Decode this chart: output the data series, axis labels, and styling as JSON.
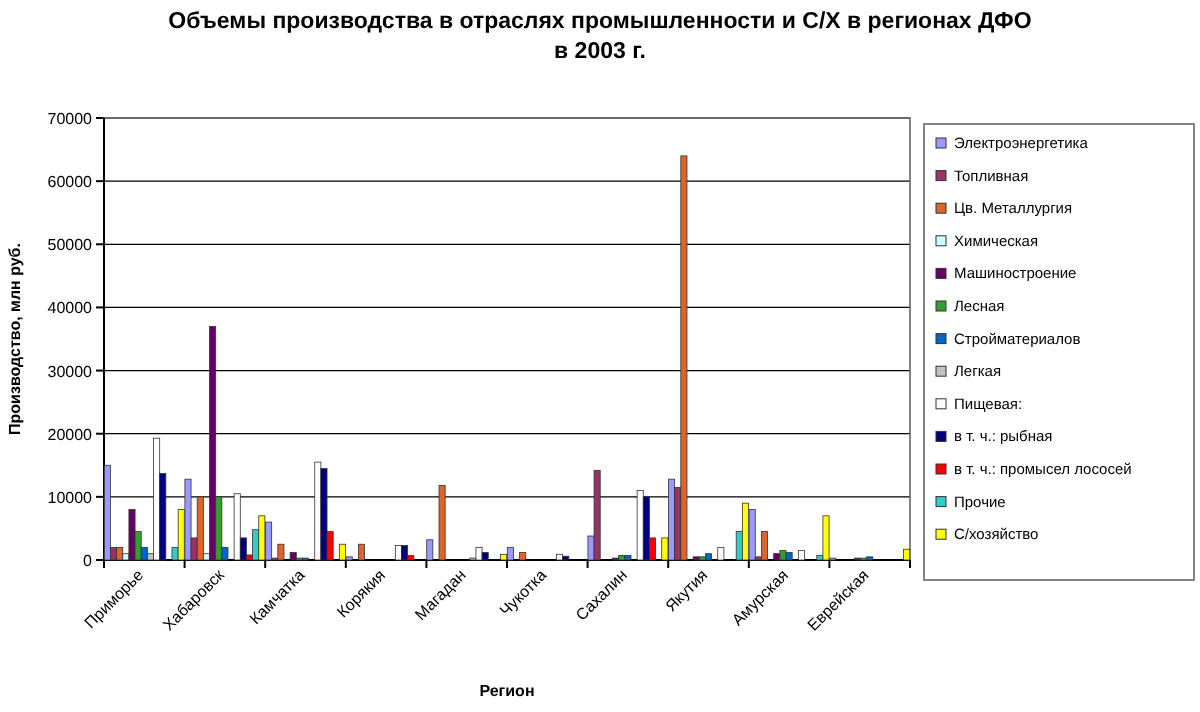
{
  "chart_data": {
    "type": "bar",
    "title": "Объемы производства в отраслях промышленности и С/Х в регионах ДФО\nв 2003 г.",
    "xlabel": "Регион",
    "ylabel": "Производство, млн  руб.",
    "categories": [
      "Приморье",
      "Хабаровск",
      "Камчатка",
      "Корякия",
      "Магадан",
      "Чукотка",
      "Сахалин",
      "Якутия",
      "Амурская",
      "Еврейская"
    ],
    "series": [
      {
        "name": "Электроэнергетика",
        "color": "#9999ff",
        "values": [
          15000,
          12800,
          6000,
          500,
          3200,
          2000,
          3800,
          12800,
          8000,
          300
        ]
      },
      {
        "name": "Топливная",
        "color": "#993366",
        "values": [
          2000,
          3500,
          300,
          0,
          0,
          0,
          14200,
          11500,
          500,
          0
        ]
      },
      {
        "name": "Цв. Металлургия",
        "color": "#e0642a",
        "values": [
          2000,
          10000,
          2500,
          2500,
          11800,
          1200,
          0,
          64000,
          4500,
          0
        ]
      },
      {
        "name": "Химическая",
        "color": "#ccffff",
        "values": [
          1000,
          1000,
          0,
          0,
          0,
          0,
          0,
          0,
          0,
          0
        ]
      },
      {
        "name": "Машиностроение",
        "color": "#660066",
        "values": [
          8000,
          37000,
          1200,
          0,
          0,
          0,
          300,
          500,
          1000,
          300
        ]
      },
      {
        "name": "Лесная",
        "color": "#33a02c",
        "values": [
          4500,
          10000,
          300,
          0,
          0,
          0,
          700,
          500,
          1500,
          300
        ]
      },
      {
        "name": "Стройматериалов",
        "color": "#0066cc",
        "values": [
          2000,
          2000,
          300,
          0,
          0,
          0,
          700,
          1000,
          1200,
          500
        ]
      },
      {
        "name": "Легкая",
        "color": "#c0c0c0",
        "values": [
          1000,
          0,
          0,
          0,
          300,
          0,
          0,
          0,
          0,
          0
        ]
      },
      {
        "name": "Пищевая:",
        "color": "#ffffff",
        "values": [
          19300,
          10500,
          15500,
          2300,
          2000,
          900,
          11000,
          2000,
          1500,
          0
        ]
      },
      {
        "name": "в т. ч.: рыбная",
        "color": "#000080",
        "values": [
          13700,
          3500,
          14500,
          2300,
          1200,
          600,
          10000,
          0,
          0,
          0
        ]
      },
      {
        "name": "в т. ч.: промысел лососей",
        "color": "#ff0000",
        "values": [
          0,
          800,
          4500,
          700,
          0,
          0,
          3500,
          0,
          0,
          0
        ]
      },
      {
        "name": "Прочие",
        "color": "#33cccc",
        "values": [
          2000,
          4800,
          0,
          0,
          0,
          0,
          0,
          4500,
          700,
          0
        ]
      },
      {
        "name": "С/хозяйство",
        "color": "#ffff00",
        "values": [
          8000,
          7000,
          2500,
          0,
          900,
          0,
          3500,
          9000,
          7000,
          1700
        ]
      }
    ],
    "ylim": [
      0,
      70000
    ],
    "yticks": [
      0,
      10000,
      20000,
      30000,
      40000,
      50000,
      60000,
      70000
    ],
    "grid": "y",
    "legend": "right"
  }
}
